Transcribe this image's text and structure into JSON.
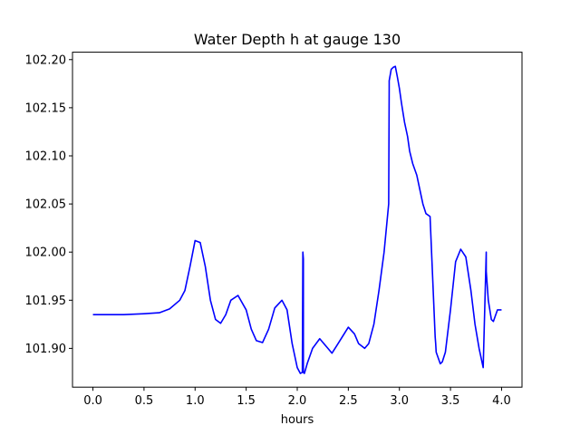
{
  "chart_data": {
    "type": "line",
    "title": "Water Depth h at gauge 130",
    "xlabel": "hours",
    "ylabel": "",
    "xlim": [
      -0.2,
      4.2
    ],
    "ylim": [
      101.8597,
      102.2077
    ],
    "x_ticks": [
      0.0,
      0.5,
      1.0,
      1.5,
      2.0,
      2.5,
      3.0,
      3.5,
      4.0
    ],
    "x_tick_labels": [
      "0.0",
      "0.5",
      "1.0",
      "1.5",
      "2.0",
      "2.5",
      "3.0",
      "3.5",
      "4.0"
    ],
    "y_ticks": [
      101.9,
      101.95,
      102.0,
      102.05,
      102.1,
      102.15,
      102.2
    ],
    "y_tick_labels": [
      "101.90",
      "101.95",
      "102.00",
      "102.05",
      "102.10",
      "102.15",
      "102.20"
    ],
    "grid": false,
    "legend": "none",
    "colors": {
      "line": "#0000ff",
      "axes": "#000000",
      "background": "#ffffff"
    },
    "series": [
      {
        "x": [
          0.0,
          0.3,
          0.5,
          0.65,
          0.75,
          0.85,
          0.9,
          0.95,
          1.0,
          1.05,
          1.1,
          1.15,
          1.2,
          1.25,
          1.3,
          1.35,
          1.42,
          1.5,
          1.55,
          1.6,
          1.66,
          1.72,
          1.78,
          1.85,
          1.9,
          1.95,
          2.0,
          2.03,
          2.05,
          2.055,
          2.06,
          2.06,
          2.07,
          2.1,
          2.15,
          2.22,
          2.3,
          2.34,
          2.4,
          2.5,
          2.56,
          2.6,
          2.66,
          2.7,
          2.75,
          2.8,
          2.85,
          2.895,
          2.9,
          2.9,
          2.92,
          2.94,
          2.96,
          2.98,
          3.0,
          3.02,
          3.05,
          3.08,
          3.1,
          3.13,
          3.17,
          3.2,
          3.23,
          3.26,
          3.3,
          3.35,
          3.355,
          3.36,
          3.4,
          3.42,
          3.45,
          3.5,
          3.55,
          3.6,
          3.65,
          3.7,
          3.74,
          3.78,
          3.82,
          3.85,
          3.85,
          3.87,
          3.9,
          3.92,
          3.96,
          4.0
        ],
        "y": [
          101.935,
          101.935,
          101.936,
          101.937,
          101.941,
          101.95,
          101.96,
          101.985,
          102.012,
          102.01,
          101.985,
          101.95,
          101.93,
          101.926,
          101.935,
          101.95,
          101.955,
          101.94,
          101.92,
          101.908,
          101.906,
          101.92,
          101.942,
          101.95,
          101.94,
          101.905,
          101.88,
          101.874,
          101.875,
          102.0,
          101.993,
          101.875,
          101.874,
          101.885,
          101.9,
          101.91,
          101.9,
          101.895,
          101.905,
          101.922,
          101.915,
          101.905,
          101.9,
          101.905,
          101.925,
          101.96,
          102.0,
          102.05,
          102.17,
          102.178,
          102.19,
          102.192,
          102.193,
          102.182,
          102.17,
          102.155,
          102.135,
          102.12,
          102.105,
          102.092,
          102.08,
          102.065,
          102.05,
          102.04,
          102.037,
          101.912,
          101.905,
          101.896,
          101.884,
          101.886,
          101.896,
          101.94,
          101.99,
          102.003,
          101.995,
          101.96,
          101.925,
          101.9,
          101.88,
          102.0,
          101.98,
          101.95,
          101.93,
          101.928,
          101.94,
          101.94
        ]
      }
    ]
  }
}
